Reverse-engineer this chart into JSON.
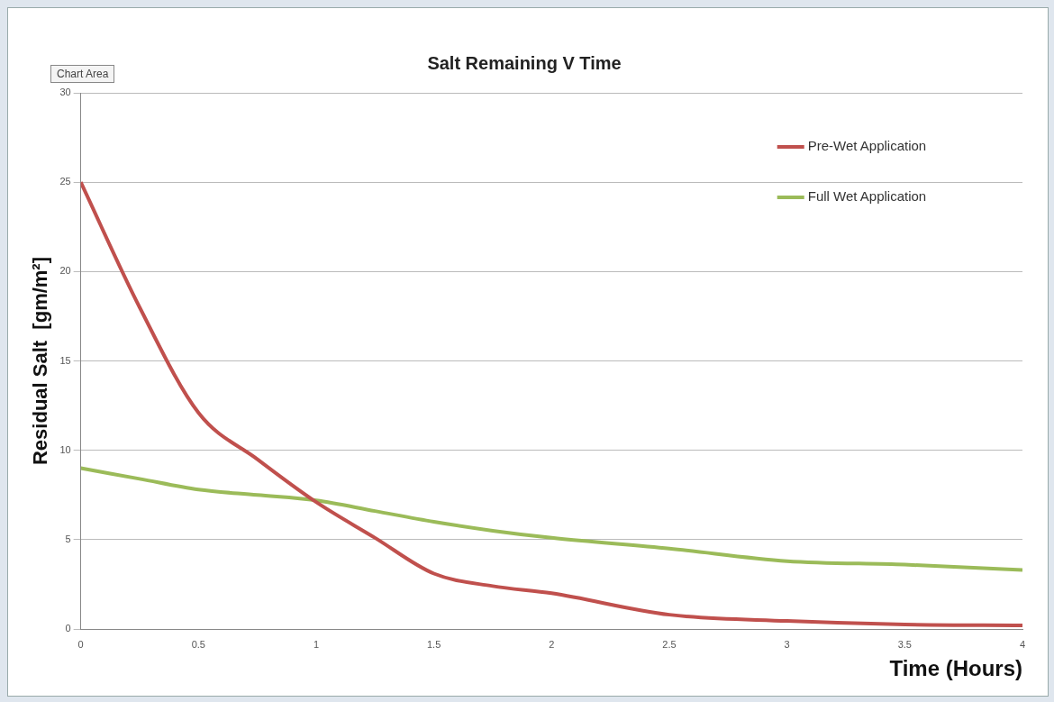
{
  "chart_data": {
    "type": "line",
    "title": "Salt Remaining V Time",
    "xlabel": "Time (Hours)",
    "ylabel": "Residual Salt  [gm/m²]",
    "annotations": [
      "Chart Area"
    ],
    "x": [
      0,
      0.25,
      0.5,
      0.75,
      1,
      1.25,
      1.5,
      1.75,
      2,
      2.5,
      3,
      3.5,
      4
    ],
    "series": [
      {
        "name": "Pre-Wet Application",
        "color": "#c0504d",
        "values": [
          25,
          18,
          12.1,
          9.5,
          7.1,
          5.1,
          3.1,
          2.4,
          2.0,
          0.8,
          0.45,
          0.25,
          0.2
        ]
      },
      {
        "name": "Full Wet Application",
        "color": "#9bbb59",
        "values": [
          9,
          8.4,
          7.8,
          7.5,
          7.2,
          6.6,
          6.0,
          5.5,
          5.1,
          4.5,
          3.8,
          3.6,
          3.3
        ]
      }
    ],
    "xlim": [
      0,
      4
    ],
    "xticks": [
      0,
      0.5,
      1,
      1.5,
      2,
      2.5,
      3,
      3.5,
      4
    ],
    "ylim": [
      0,
      30
    ],
    "yticks": [
      0,
      5,
      10,
      15,
      20,
      25,
      30
    ],
    "grid": "y",
    "legend": "top right",
    "marker": "none",
    "line_style": "solid"
  }
}
